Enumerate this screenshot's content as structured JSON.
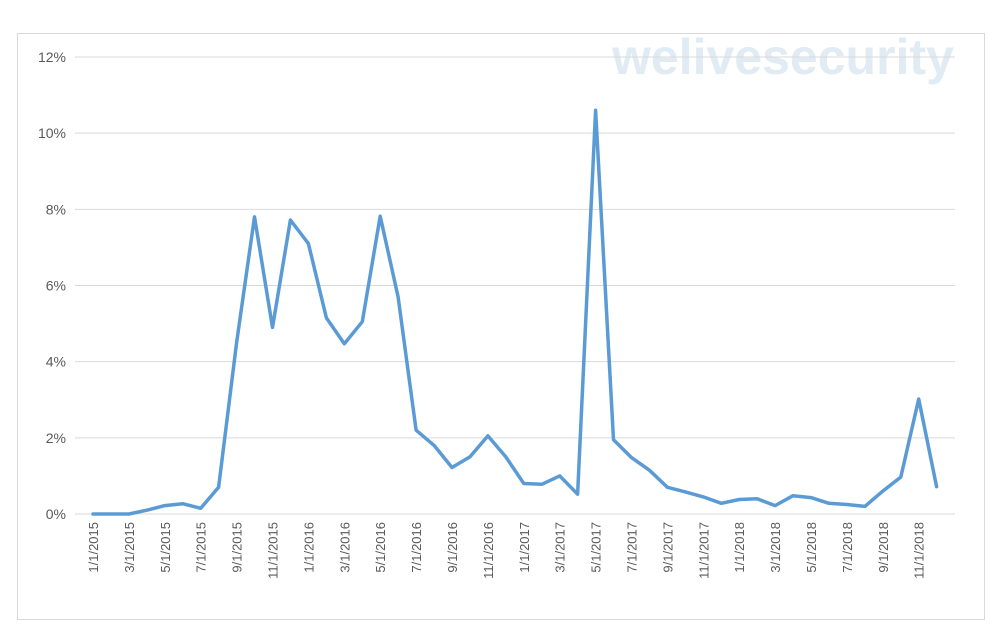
{
  "watermark": "welivesecurity",
  "chart_data": {
    "type": "line",
    "title": "",
    "xlabel": "",
    "ylabel": "",
    "ylim": [
      0,
      12
    ],
    "y_unit": "%",
    "yticks": [
      0,
      2,
      4,
      6,
      8,
      10,
      12
    ],
    "ytick_labels": [
      "0%",
      "2%",
      "4%",
      "6%",
      "8%",
      "10%",
      "12%"
    ],
    "grid": "horizontal",
    "legend": "none",
    "line_color": "#5b9bd5",
    "x": [
      "1/1/2015",
      "2/1/2015",
      "3/1/2015",
      "4/1/2015",
      "5/1/2015",
      "6/1/2015",
      "7/1/2015",
      "8/1/2015",
      "9/1/2015",
      "10/1/2015",
      "11/1/2015",
      "12/1/2015",
      "1/1/2016",
      "2/1/2016",
      "3/1/2016",
      "4/1/2016",
      "5/1/2016",
      "6/1/2016",
      "7/1/2016",
      "8/1/2016",
      "9/1/2016",
      "10/1/2016",
      "11/1/2016",
      "12/1/2016",
      "1/1/2017",
      "2/1/2017",
      "3/1/2017",
      "4/1/2017",
      "5/1/2017",
      "6/1/2017",
      "7/1/2017",
      "8/1/2017",
      "9/1/2017",
      "10/1/2017",
      "11/1/2017",
      "12/1/2017",
      "1/1/2018",
      "2/1/2018",
      "3/1/2018",
      "4/1/2018",
      "5/1/2018",
      "6/1/2018",
      "7/1/2018",
      "8/1/2018",
      "9/1/2018",
      "10/1/2018",
      "11/1/2018",
      "12/1/2018"
    ],
    "xtick_labels": [
      "1/1/2015",
      "3/1/2015",
      "5/1/2015",
      "7/1/2015",
      "9/1/2015",
      "11/1/2015",
      "1/1/2016",
      "3/1/2016",
      "5/1/2016",
      "7/1/2016",
      "9/1/2016",
      "11/1/2016",
      "1/1/2017",
      "3/1/2017",
      "5/1/2017",
      "7/1/2017",
      "9/1/2017",
      "11/1/2017",
      "1/1/2018",
      "3/1/2018",
      "5/1/2018",
      "7/1/2018",
      "9/1/2018",
      "11/1/2018"
    ],
    "values": [
      0,
      0,
      0,
      0.1,
      0.22,
      0.27,
      0.15,
      0.7,
      4.5,
      7.8,
      4.9,
      7.72,
      7.1,
      5.15,
      4.47,
      5.05,
      7.82,
      5.7,
      2.2,
      1.8,
      1.22,
      1.5,
      2.05,
      1.5,
      0.8,
      0.78,
      1.0,
      0.52,
      10.6,
      1.95,
      1.48,
      1.15,
      0.7,
      0.58,
      0.45,
      0.28,
      0.38,
      0.4,
      0.22,
      0.48,
      0.43,
      0.28,
      0.25,
      0.2,
      0.6,
      0.97,
      3.02,
      0.72
    ]
  }
}
